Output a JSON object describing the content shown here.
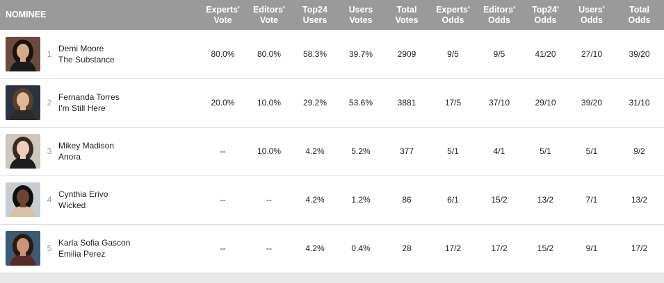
{
  "columns": {
    "nominee": "NOMINEE",
    "experts_vote": [
      "Experts'",
      "Vote"
    ],
    "editors_vote": [
      "Editors'",
      "Vote"
    ],
    "top24_users": [
      "Top24",
      "Users"
    ],
    "users_votes": [
      "Users",
      "Votes"
    ],
    "total_votes": [
      "Total",
      "Votes"
    ],
    "experts_odds": [
      "Experts'",
      "Odds"
    ],
    "editors_odds": [
      "Editors'",
      "Odds"
    ],
    "top24_odds": [
      "Top24'",
      "Odds"
    ],
    "users_odds": [
      "Users'",
      "Odds"
    ],
    "total_odds": [
      "Total",
      "Odds"
    ]
  },
  "rows": [
    {
      "rank": "1",
      "name": "Demi Moore",
      "film": "The Substance",
      "experts_vote": "80.0%",
      "editors_vote": "80.0%",
      "top24_users": "58.3%",
      "users_votes": "39.7%",
      "total_votes": "2909",
      "experts_odds": "9/5",
      "editors_odds": "9/5",
      "top24_odds": "41/20",
      "users_odds": "27/10",
      "total_odds": "39/20"
    },
    {
      "rank": "2",
      "name": "Fernanda Torres",
      "film": "I'm Still Here",
      "experts_vote": "20.0%",
      "editors_vote": "10.0%",
      "top24_users": "29.2%",
      "users_votes": "53.6%",
      "total_votes": "3881",
      "experts_odds": "17/5",
      "editors_odds": "37/10",
      "top24_odds": "29/10",
      "users_odds": "39/20",
      "total_odds": "31/10"
    },
    {
      "rank": "3",
      "name": "Mikey Madison",
      "film": "Anora",
      "experts_vote": "--",
      "editors_vote": "10.0%",
      "top24_users": "4.2%",
      "users_votes": "5.2%",
      "total_votes": "377",
      "experts_odds": "5/1",
      "editors_odds": "4/1",
      "top24_odds": "5/1",
      "users_odds": "5/1",
      "total_odds": "9/2"
    },
    {
      "rank": "4",
      "name": "Cynthia Erivo",
      "film": "Wicked",
      "experts_vote": "--",
      "editors_vote": "--",
      "top24_users": "4.2%",
      "users_votes": "1.2%",
      "total_votes": "86",
      "experts_odds": "6/1",
      "editors_odds": "15/2",
      "top24_odds": "13/2",
      "users_odds": "7/1",
      "total_odds": "13/2"
    },
    {
      "rank": "5",
      "name": "Karla Sofia Gascon",
      "film": "Emilia Perez",
      "experts_vote": "--",
      "editors_vote": "--",
      "top24_users": "4.2%",
      "users_votes": "0.4%",
      "total_votes": "28",
      "experts_odds": "17/2",
      "editors_odds": "17/2",
      "top24_odds": "15/2",
      "users_odds": "9/1",
      "total_odds": "17/2"
    }
  ],
  "photos": [
    {
      "bg": "#6b4a3e",
      "hair": "#1a120e",
      "skin": "#d9a98c",
      "cloth": "#1b1b1b"
    },
    {
      "bg": "#2c3340",
      "hair": "#5a3f2c",
      "skin": "#e1b79a",
      "cloth": "#2a2a2a"
    },
    {
      "bg": "#cfc6bd",
      "hair": "#3a2a22",
      "skin": "#efcdb6",
      "cloth": "#1e1e1e"
    },
    {
      "bg": "#c8ccd2",
      "hair": "#0f0f0f",
      "skin": "#6b4433",
      "cloth": "#d8c3a8"
    },
    {
      "bg": "#3c5a72",
      "hair": "#2a1a12",
      "skin": "#c99477",
      "cloth": "#5a2a2a"
    }
  ]
}
